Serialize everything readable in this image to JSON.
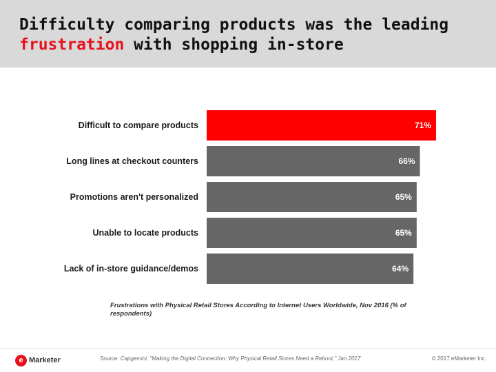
{
  "header": {
    "title_pre": "Difficulty comparing products was the leading ",
    "title_highlight": "frustration",
    "title_post": " with shopping in-store"
  },
  "colors": {
    "highlight": "#ff0000",
    "bar": "#666666",
    "title_highlight": "#e8101a"
  },
  "chart_data": {
    "type": "bar",
    "orientation": "horizontal",
    "categories": [
      "Difficult to compare products",
      "Long lines at checkout counters",
      "Promotions aren't personalized",
      "Unable to locate products",
      "Lack of in-store guidance/demos"
    ],
    "values": [
      71,
      66,
      65,
      65,
      64
    ],
    "value_labels": [
      "71%",
      "66%",
      "65%",
      "65%",
      "64%"
    ],
    "highlight_index": 0,
    "title": "",
    "caption": "Frustrations with Physical Retail Stores According to Internet Users Worldwide, Nov 2016 (% of respondents)",
    "grid": false,
    "legend": "none"
  },
  "footer": {
    "logo_mark": "e",
    "logo_text": "Marketer",
    "source": "Source: Capgemini, \"Making the Digital Connection: Why Physical Retail Stores Need a Reboot,\" Jan 2017",
    "copyright": "© 2017 eMarketer Inc."
  }
}
